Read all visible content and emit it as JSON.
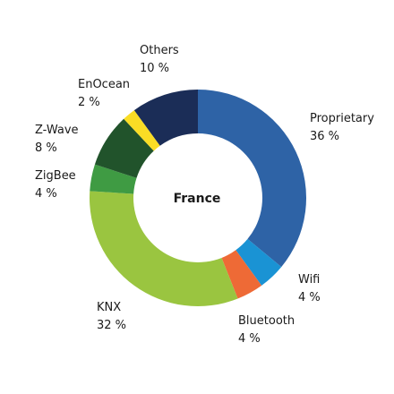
{
  "chart_data": {
    "type": "pie",
    "title": "France",
    "slices": [
      {
        "label": "Proprietary",
        "value_text": "36 %",
        "value": 36,
        "color": "#2e63a6"
      },
      {
        "label": "Wifi",
        "value_text": "4 %",
        "value": 4,
        "color": "#1a93d4"
      },
      {
        "label": "Bluetooth",
        "value_text": "4 %",
        "value": 4,
        "color": "#ee6a36"
      },
      {
        "label": "KNX",
        "value_text": "32 %",
        "value": 32,
        "color": "#9ac540"
      },
      {
        "label": "ZigBee",
        "value_text": "4 %",
        "value": 4,
        "color": "#3f9b43"
      },
      {
        "label": "Z-Wave",
        "value_text": "8 %",
        "value": 8,
        "color": "#21532b"
      },
      {
        "label": "EnOcean",
        "value_text": "2 %",
        "value": 2,
        "color": "#fadd25"
      },
      {
        "label": "Others",
        "value_text": "10 %",
        "value": 10,
        "color": "#1b2d57"
      }
    ]
  }
}
